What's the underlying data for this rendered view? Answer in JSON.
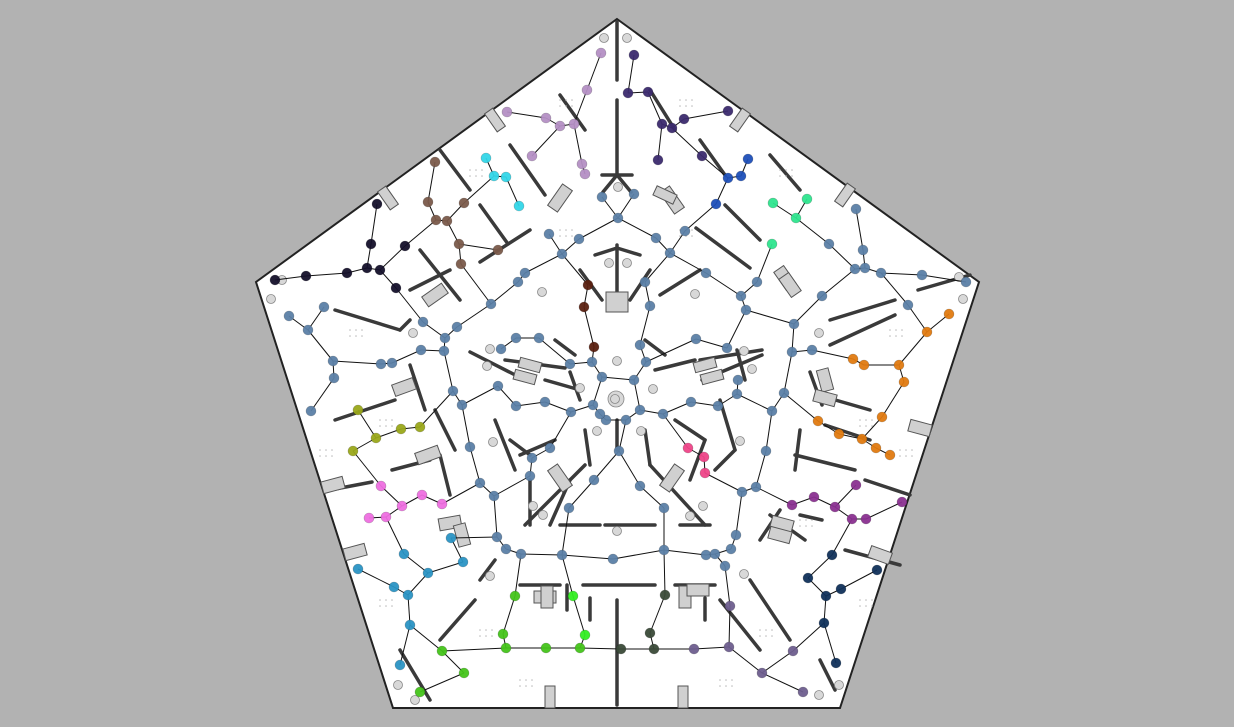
{
  "colors": {
    "background": "#b2b2b2",
    "floor": "#ffffff",
    "outline": "#222222",
    "wall": "#3a3a3a",
    "furniture_fill": "#d0d0d0",
    "furniture_stroke": "#555555",
    "edge": "#111111",
    "idle_marker": "#d8d8d8"
  },
  "groups": [
    {
      "name": "center-network",
      "color": "#5b7fa6"
    },
    {
      "name": "lavender-cluster",
      "color": "#b48fc4"
    },
    {
      "name": "dark-purple-cluster",
      "color": "#3b2a6e"
    },
    {
      "name": "cyan-cluster",
      "color": "#33d6e8"
    },
    {
      "name": "brown-cluster",
      "color": "#7a5a4a"
    },
    {
      "name": "black-cluster",
      "color": "#14102a"
    },
    {
      "name": "blue-cluster",
      "color": "#1e4fb8"
    },
    {
      "name": "mint-cluster",
      "color": "#2ee58e"
    },
    {
      "name": "maroon-cluster",
      "color": "#5a2010"
    },
    {
      "name": "orange-cluster",
      "color": "#e07a10"
    },
    {
      "name": "olive-cluster",
      "color": "#9aa81a"
    },
    {
      "name": "pink-cluster",
      "color": "#ee6fe0"
    },
    {
      "name": "magenta-cluster",
      "color": "#ee4488"
    },
    {
      "name": "purple-cluster",
      "color": "#8a3090"
    },
    {
      "name": "teal-cluster",
      "color": "#2a94c4"
    },
    {
      "name": "green-cluster",
      "color": "#44c41a"
    },
    {
      "name": "bright-green-cluster",
      "color": "#33ee22"
    },
    {
      "name": "dark-green-cluster",
      "color": "#3a4a38"
    },
    {
      "name": "grey-purple-cluster",
      "color": "#6e5e8e"
    },
    {
      "name": "navy-cluster",
      "color": "#10305a"
    }
  ]
}
